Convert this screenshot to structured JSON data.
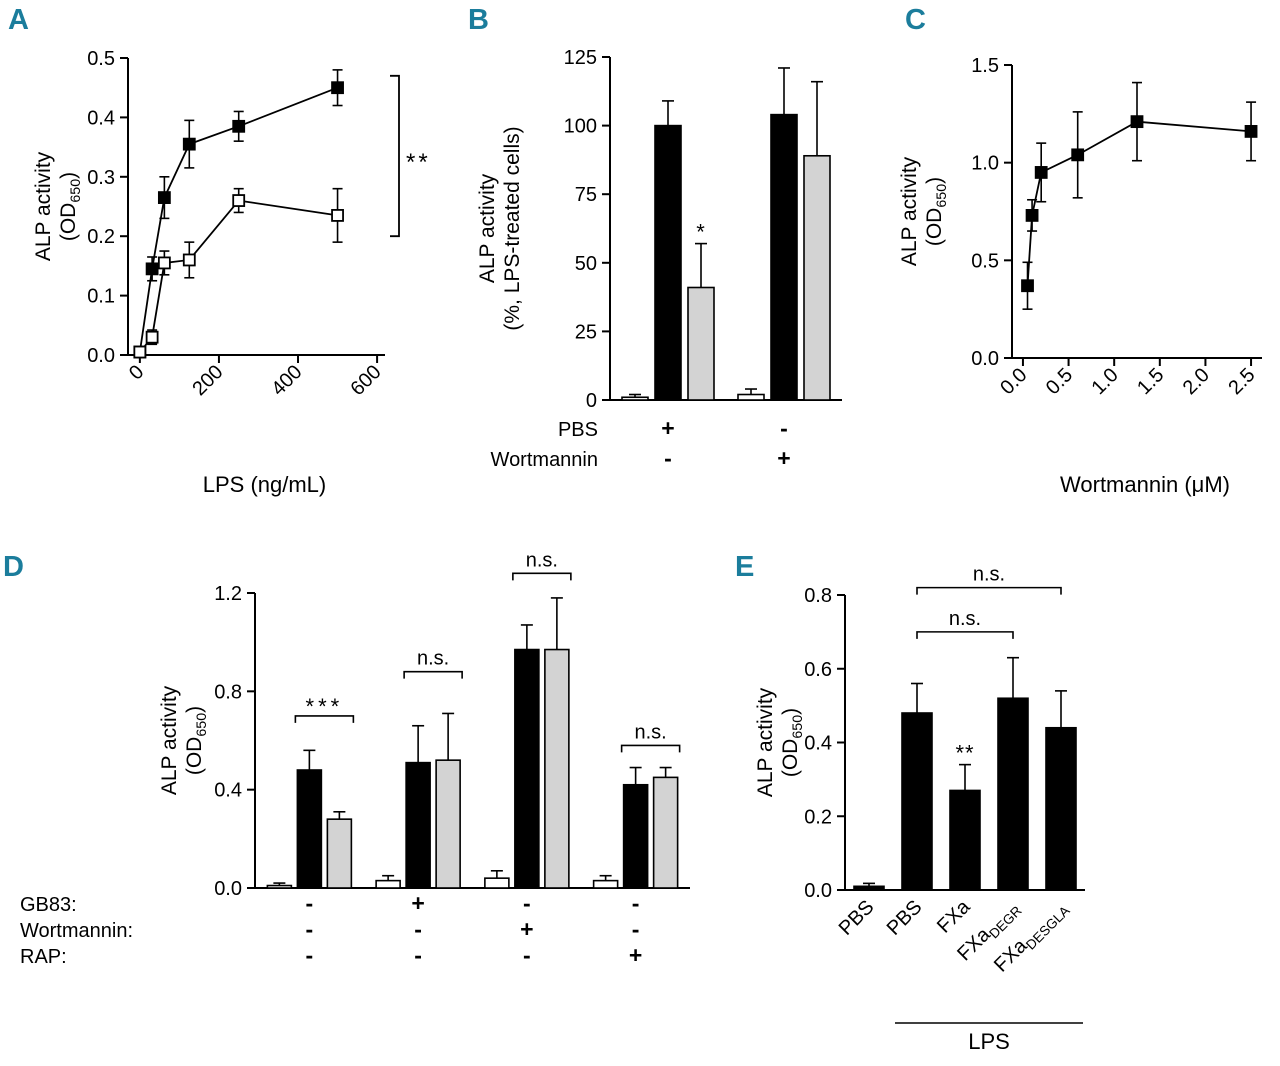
{
  "colors": {
    "panel_letter": "#1b7d9c",
    "axis": "#000000",
    "bar_black": "#000000",
    "bar_gray": "#d3d3d3",
    "bar_white": "#ffffff"
  },
  "chart_data": [
    {
      "id": "A",
      "type": "line",
      "ylabel": "ALP activity",
      "ylabel2": "(OD~650~)",
      "xlabel": "LPS (ng/mL)",
      "ylim": [
        0,
        0.5
      ],
      "yticks": [
        "0.0",
        "0.1",
        "0.2",
        "0.3",
        "0.4",
        "0.5"
      ],
      "xlim": [
        -30,
        620
      ],
      "xticks": [
        0,
        200,
        400,
        600
      ],
      "xtick_labels": [
        "0",
        "200",
        "400",
        "600"
      ],
      "series": [
        {
          "marker": "filled-square",
          "x": [
            0,
            31,
            62,
            125,
            250,
            500
          ],
          "y": [
            0.005,
            0.145,
            0.265,
            0.355,
            0.385,
            0.45
          ],
          "err": [
            0.005,
            0.02,
            0.035,
            0.04,
            0.025,
            0.03
          ]
        },
        {
          "marker": "open-square",
          "x": [
            0,
            31,
            62,
            125,
            250,
            500
          ],
          "y": [
            0.005,
            0.03,
            0.155,
            0.16,
            0.26,
            0.235
          ],
          "err": [
            0.005,
            0.012,
            0.02,
            0.03,
            0.02,
            0.045
          ]
        }
      ],
      "significance": [
        {
          "type": "right-bracket",
          "text": "**",
          "y_top": 0.47,
          "y_bottom": 0.2
        }
      ]
    },
    {
      "id": "B",
      "type": "bar",
      "ylabel": "ALP activity",
      "ylabel2": "(%, LPS-treated cells)",
      "ylim": [
        0,
        125
      ],
      "yticks": [
        "0",
        "25",
        "50",
        "75",
        "100",
        "125"
      ],
      "groups": [
        {
          "bars": [
            {
              "fill": "white",
              "value": 1,
              "err": 1
            },
            {
              "fill": "black",
              "value": 100,
              "err": 9
            },
            {
              "fill": "gray",
              "value": 41,
              "err": 16,
              "sig": "*"
            }
          ]
        },
        {
          "bars": [
            {
              "fill": "white",
              "value": 2,
              "err": 2
            },
            {
              "fill": "black",
              "value": 104,
              "err": 17
            },
            {
              "fill": "gray",
              "value": 89,
              "err": 27
            }
          ]
        }
      ],
      "row_labels": [
        {
          "label": "PBS",
          "values": [
            "+",
            "-"
          ]
        },
        {
          "label": "Wortmannin",
          "values": [
            "-",
            "+"
          ]
        }
      ]
    },
    {
      "id": "C",
      "type": "line",
      "ylabel": "ALP activity",
      "ylabel2": "(OD~650~)",
      "xlabel": "Wortmannin (μM)",
      "ylim": [
        0,
        1.5
      ],
      "yticks": [
        "0.0",
        "0.5",
        "1.0",
        "1.5"
      ],
      "xlim": [
        -0.12,
        2.62
      ],
      "xticks": [
        0,
        0.5,
        1,
        1.5,
        2,
        2.5
      ],
      "xtick_labels": [
        "0.0",
        "0.5",
        "1.0",
        "1.5",
        "2.0",
        "2.5"
      ],
      "series": [
        {
          "marker": "filled-square",
          "x": [
            0.05,
            0.1,
            0.2,
            0.6,
            1.25,
            2.5
          ],
          "y": [
            0.37,
            0.73,
            0.95,
            1.04,
            1.21,
            1.16
          ],
          "err": [
            0.12,
            0.08,
            0.15,
            0.22,
            0.2,
            0.15
          ]
        }
      ]
    },
    {
      "id": "D",
      "type": "bar",
      "ylabel": "ALP activity",
      "ylabel2": "(OD~650~)",
      "ylim": [
        0,
        1.2
      ],
      "yticks": [
        "0.0",
        "0.4",
        "0.8",
        "1.2"
      ],
      "groups": [
        {
          "sig": "***",
          "sig_y": 0.7,
          "sig_bars": [
            1,
            2
          ],
          "bars": [
            {
              "fill": "white",
              "value": 0.01,
              "err": 0.01
            },
            {
              "fill": "black",
              "value": 0.48,
              "err": 0.08
            },
            {
              "fill": "gray",
              "value": 0.28,
              "err": 0.03
            }
          ]
        },
        {
          "sig": "n.s.",
          "sig_y": 0.88,
          "sig_bars": [
            1,
            2
          ],
          "bars": [
            {
              "fill": "white",
              "value": 0.03,
              "err": 0.02
            },
            {
              "fill": "black",
              "value": 0.51,
              "err": 0.15
            },
            {
              "fill": "gray",
              "value": 0.52,
              "err": 0.19
            }
          ]
        },
        {
          "sig": "n.s.",
          "sig_y": 1.28,
          "sig_bars": [
            1,
            2
          ],
          "bars": [
            {
              "fill": "white",
              "value": 0.04,
              "err": 0.03
            },
            {
              "fill": "black",
              "value": 0.97,
              "err": 0.1
            },
            {
              "fill": "gray",
              "value": 0.97,
              "err": 0.21
            }
          ]
        },
        {
          "sig": "n.s.",
          "sig_y": 0.58,
          "sig_bars": [
            1,
            2
          ],
          "bars": [
            {
              "fill": "white",
              "value": 0.03,
              "err": 0.02
            },
            {
              "fill": "black",
              "value": 0.42,
              "err": 0.07
            },
            {
              "fill": "gray",
              "value": 0.45,
              "err": 0.04
            }
          ]
        }
      ],
      "row_labels": [
        {
          "label": "GB83:",
          "values": [
            "-",
            "+",
            "-",
            "-"
          ]
        },
        {
          "label": "Wortmannin:",
          "values": [
            "-",
            "-",
            "+",
            "-"
          ]
        },
        {
          "label": "RAP:",
          "values": [
            "-",
            "-",
            "-",
            "+"
          ]
        }
      ]
    },
    {
      "id": "E",
      "type": "bar",
      "ylabel": "ALP activity",
      "ylabel2": "(OD~650~)",
      "ylim": [
        0,
        0.8
      ],
      "yticks": [
        "0.0",
        "0.2",
        "0.4",
        "0.6",
        "0.8"
      ],
      "categories": [
        "PBS",
        "PBS",
        "FXa",
        "FXa~DEGR~",
        "FXa~DESGLA~"
      ],
      "bars": [
        {
          "fill": "black",
          "value": 0.01,
          "err": 0.008
        },
        {
          "fill": "black",
          "value": 0.48,
          "err": 0.08
        },
        {
          "fill": "black",
          "value": 0.27,
          "err": 0.07,
          "sig": "**"
        },
        {
          "fill": "black",
          "value": 0.52,
          "err": 0.11
        },
        {
          "fill": "black",
          "value": 0.44,
          "err": 0.1
        }
      ],
      "brackets": [
        {
          "text": "n.s.",
          "from": 1,
          "to": 3,
          "y": 0.7
        },
        {
          "text": "n.s.",
          "from": 1,
          "to": 4,
          "y": 0.82
        }
      ],
      "group_underline": {
        "label": "LPS",
        "from": 1,
        "to": 4
      }
    }
  ]
}
